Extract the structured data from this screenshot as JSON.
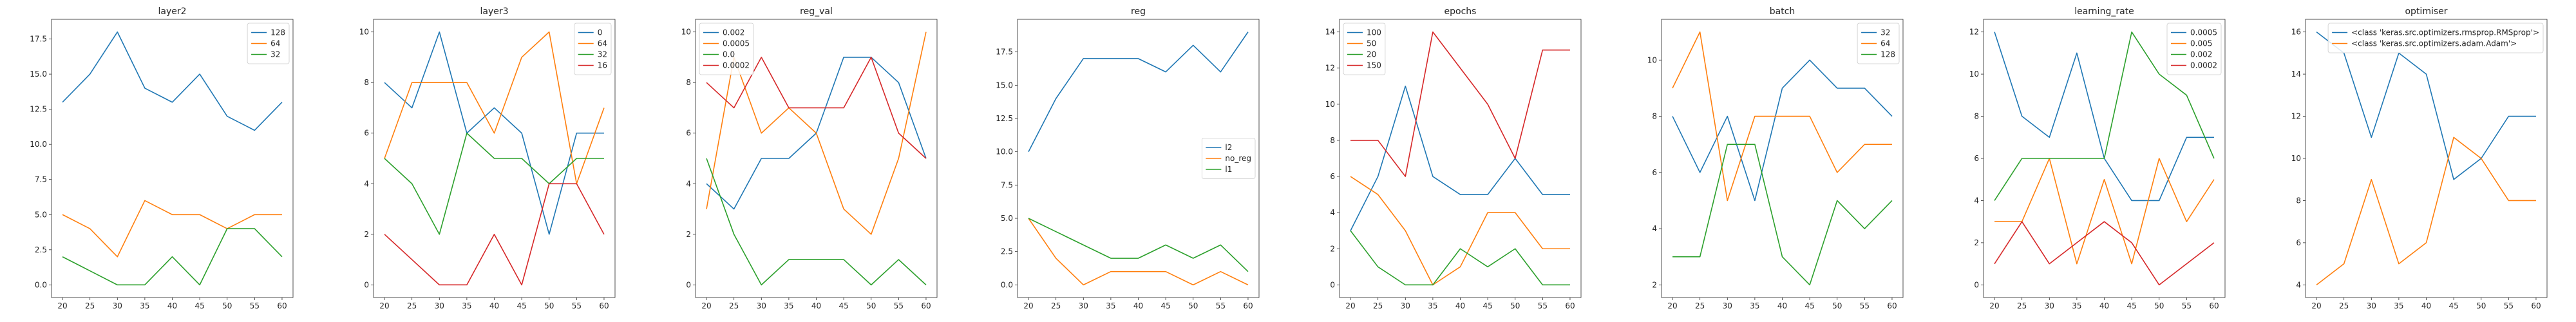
{
  "chart_data": [
    {
      "type": "line",
      "title": "layer2",
      "x": [
        20,
        25,
        30,
        35,
        40,
        45,
        50,
        55,
        60
      ],
      "ylim": [
        -0.9,
        18.9
      ],
      "yticks": [
        0,
        2.5,
        5.0,
        7.5,
        10.0,
        12.5,
        15.0,
        17.5
      ],
      "ytick_labels": [
        "0.0",
        "2.5",
        "5.0",
        "7.5",
        "10.0",
        "12.5",
        "15.0",
        "17.5"
      ],
      "legend_position": "top-right",
      "series": [
        {
          "name": "128",
          "color": "#1f77b4",
          "values": [
            13,
            15,
            18,
            14,
            13,
            15,
            12,
            11,
            13
          ]
        },
        {
          "name": "64",
          "color": "#ff7f0e",
          "values": [
            5,
            4,
            2,
            6,
            5,
            5,
            4,
            5,
            5
          ]
        },
        {
          "name": "32",
          "color": "#2ca02c",
          "values": [
            2,
            1,
            0,
            0,
            2,
            0,
            4,
            4,
            2
          ]
        }
      ]
    },
    {
      "type": "line",
      "title": "layer3",
      "x": [
        20,
        25,
        30,
        35,
        40,
        45,
        50,
        55,
        60
      ],
      "ylim": [
        -0.5,
        10.5
      ],
      "yticks": [
        0,
        2,
        4,
        6,
        8,
        10
      ],
      "ytick_labels": [
        "0",
        "2",
        "4",
        "6",
        "8",
        "10"
      ],
      "legend_position": "top-right",
      "series": [
        {
          "name": "0",
          "color": "#1f77b4",
          "values": [
            8,
            7,
            10,
            6,
            7,
            6,
            2,
            6,
            6
          ]
        },
        {
          "name": "64",
          "color": "#ff7f0e",
          "values": [
            5,
            8,
            8,
            8,
            6,
            9,
            10,
            4,
            7
          ]
        },
        {
          "name": "32",
          "color": "#2ca02c",
          "values": [
            5,
            4,
            2,
            6,
            5,
            5,
            4,
            5,
            5
          ]
        },
        {
          "name": "16",
          "color": "#d62728",
          "values": [
            2,
            1,
            0,
            0,
            2,
            0,
            4,
            4,
            2
          ]
        }
      ]
    },
    {
      "type": "line",
      "title": "reg_val",
      "x": [
        20,
        25,
        30,
        35,
        40,
        45,
        50,
        55,
        60
      ],
      "ylim": [
        -0.5,
        10.5
      ],
      "yticks": [
        0,
        2,
        4,
        6,
        8,
        10
      ],
      "ytick_labels": [
        "0",
        "2",
        "4",
        "6",
        "8",
        "10"
      ],
      "legend_position": "top-left",
      "series": [
        {
          "name": "0.002",
          "color": "#1f77b4",
          "values": [
            4,
            3,
            5,
            5,
            6,
            9,
            9,
            8,
            5
          ]
        },
        {
          "name": "0.0005",
          "color": "#ff7f0e",
          "values": [
            3,
            9,
            6,
            7,
            6,
            3,
            2,
            5,
            10
          ]
        },
        {
          "name": "0.0",
          "color": "#2ca02c",
          "values": [
            5,
            2,
            0,
            1,
            1,
            1,
            0,
            1,
            0
          ]
        },
        {
          "name": "0.0002",
          "color": "#d62728",
          "values": [
            8,
            7,
            9,
            7,
            7,
            7,
            9,
            6,
            5
          ]
        }
      ]
    },
    {
      "type": "line",
      "title": "reg",
      "x": [
        20,
        25,
        30,
        35,
        40,
        45,
        50,
        55,
        60
      ],
      "ylim": [
        -0.95,
        19.95
      ],
      "yticks": [
        0,
        2.5,
        5.0,
        7.5,
        10.0,
        12.5,
        15.0,
        17.5
      ],
      "ytick_labels": [
        "0.0",
        "2.5",
        "5.0",
        "7.5",
        "10.0",
        "12.5",
        "15.0",
        "17.5"
      ],
      "legend_position": "center-right",
      "series": [
        {
          "name": "l2",
          "color": "#1f77b4",
          "values": [
            10,
            14,
            17,
            17,
            17,
            16,
            18,
            16,
            19
          ]
        },
        {
          "name": "no_reg",
          "color": "#ff7f0e",
          "values": [
            5,
            2,
            0,
            1,
            1,
            1,
            0,
            1,
            0
          ]
        },
        {
          "name": "l1",
          "color": "#2ca02c",
          "values": [
            5,
            4,
            3,
            2,
            2,
            3,
            2,
            3,
            1
          ]
        }
      ]
    },
    {
      "type": "line",
      "title": "epochs",
      "x": [
        20,
        25,
        30,
        35,
        40,
        45,
        50,
        55,
        60
      ],
      "ylim": [
        -0.7,
        14.7
      ],
      "yticks": [
        0,
        2,
        4,
        6,
        8,
        10,
        12,
        14
      ],
      "ytick_labels": [
        "0",
        "2",
        "4",
        "6",
        "8",
        "10",
        "12",
        "14"
      ],
      "legend_position": "top-left",
      "series": [
        {
          "name": "100",
          "color": "#1f77b4",
          "values": [
            3,
            6,
            11,
            6,
            5,
            5,
            7,
            5,
            5
          ]
        },
        {
          "name": "50",
          "color": "#ff7f0e",
          "values": [
            6,
            5,
            3,
            0,
            1,
            4,
            4,
            2,
            2
          ]
        },
        {
          "name": "20",
          "color": "#2ca02c",
          "values": [
            3,
            1,
            0,
            0,
            2,
            1,
            2,
            0,
            0
          ]
        },
        {
          "name": "150",
          "color": "#d62728",
          "values": [
            8,
            8,
            6,
            14,
            12,
            10,
            7,
            13,
            13
          ]
        }
      ]
    },
    {
      "type": "line",
      "title": "batch",
      "x": [
        20,
        25,
        30,
        35,
        40,
        45,
        50,
        55,
        60
      ],
      "ylim": [
        1.55,
        11.45
      ],
      "yticks": [
        2,
        4,
        6,
        8,
        10
      ],
      "ytick_labels": [
        "2",
        "4",
        "6",
        "8",
        "10"
      ],
      "legend_position": "top-right",
      "series": [
        {
          "name": "32",
          "color": "#1f77b4",
          "values": [
            8,
            6,
            8,
            5,
            9,
            10,
            9,
            9,
            8
          ]
        },
        {
          "name": "64",
          "color": "#ff7f0e",
          "values": [
            9,
            11,
            5,
            8,
            8,
            8,
            6,
            7,
            7
          ]
        },
        {
          "name": "128",
          "color": "#2ca02c",
          "values": [
            3,
            3,
            7,
            7,
            3,
            2,
            5,
            4,
            5
          ]
        }
      ]
    },
    {
      "type": "line",
      "title": "learning_rate",
      "x": [
        20,
        25,
        30,
        35,
        40,
        45,
        50,
        55,
        60
      ],
      "ylim": [
        -0.6,
        12.6
      ],
      "yticks": [
        0,
        2,
        4,
        6,
        8,
        10,
        12
      ],
      "ytick_labels": [
        "0",
        "2",
        "4",
        "6",
        "8",
        "10",
        "12"
      ],
      "legend_position": "top-right",
      "series": [
        {
          "name": "0.0005",
          "color": "#1f77b4",
          "values": [
            12,
            8,
            7,
            11,
            6,
            4,
            4,
            7,
            7
          ]
        },
        {
          "name": "0.005",
          "color": "#ff7f0e",
          "values": [
            3,
            3,
            6,
            1,
            5,
            1,
            6,
            3,
            5
          ]
        },
        {
          "name": "0.002",
          "color": "#2ca02c",
          "values": [
            4,
            6,
            6,
            6,
            6,
            12,
            10,
            9,
            6
          ]
        },
        {
          "name": "0.0002",
          "color": "#d62728",
          "values": [
            1,
            3,
            1,
            2,
            3,
            2,
            0,
            1,
            2
          ]
        }
      ]
    },
    {
      "type": "line",
      "title": "optimiser",
      "x": [
        20,
        25,
        30,
        35,
        40,
        45,
        50,
        55,
        60
      ],
      "ylim": [
        3.4,
        16.6
      ],
      "yticks": [
        4,
        6,
        8,
        10,
        12,
        14,
        16
      ],
      "ytick_labels": [
        "4",
        "6",
        "8",
        "10",
        "12",
        "14",
        "16"
      ],
      "legend_position": "top-right",
      "series": [
        {
          "name": "<class 'keras.src.optimizers.rmsprop.RMSprop'>",
          "color": "#1f77b4",
          "values": [
            16,
            15,
            11,
            15,
            14,
            9,
            10,
            12,
            12
          ]
        },
        {
          "name": "<class 'keras.src.optimizers.adam.Adam'>",
          "color": "#ff7f0e",
          "values": [
            4,
            5,
            9,
            5,
            6,
            11,
            10,
            8,
            8
          ]
        }
      ]
    }
  ]
}
